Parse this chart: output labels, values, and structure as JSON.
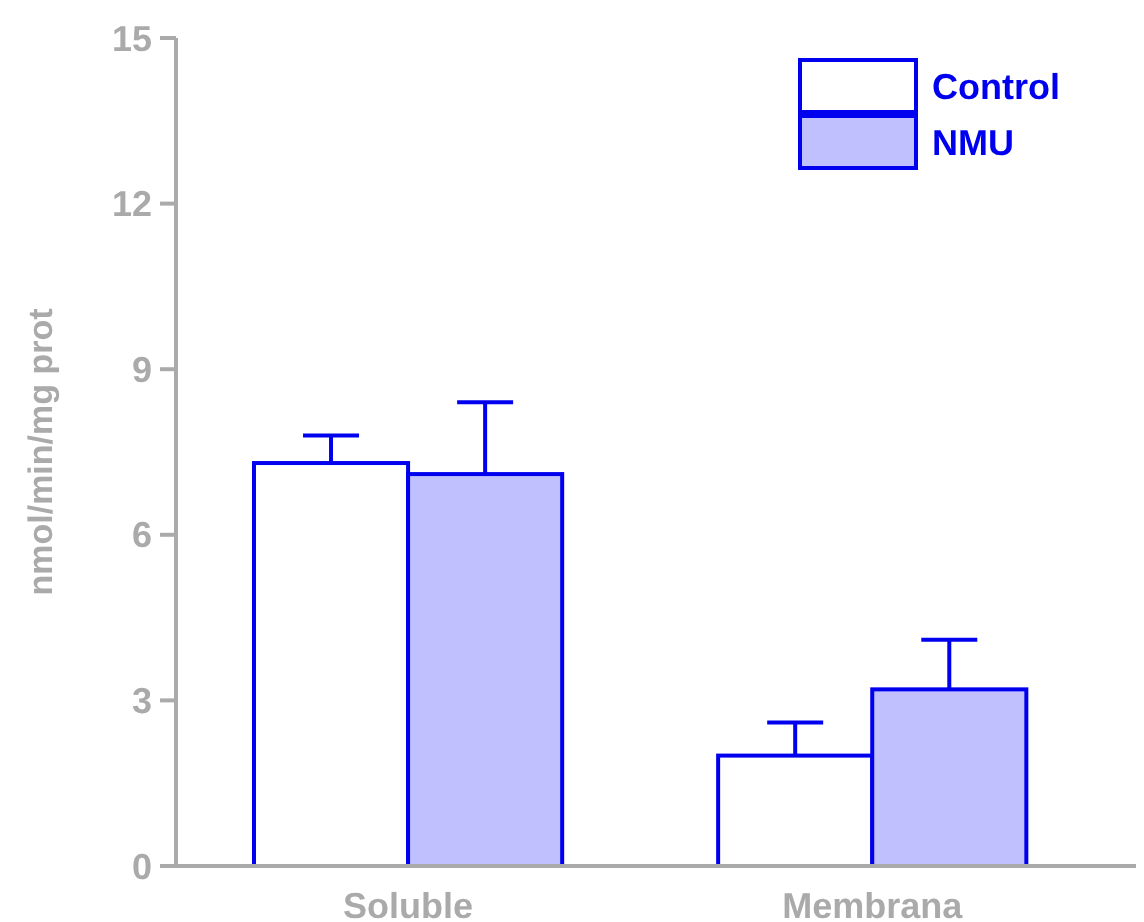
{
  "chart_data": {
    "type": "bar",
    "ylabel": "nmol/min/mg prot",
    "categories": [
      "Soluble",
      "Membrana"
    ],
    "series": [
      {
        "name": "Control",
        "color": "#ffffff",
        "values": [
          7.3,
          2.0
        ],
        "errors": [
          [
            7.3,
            7.8
          ],
          [
            2.0,
            2.6
          ]
        ]
      },
      {
        "name": "NMU",
        "color": "#c0c0ff",
        "values": [
          7.1,
          3.2
        ],
        "errors": [
          [
            7.1,
            8.4
          ],
          [
            3.2,
            4.1
          ]
        ]
      }
    ],
    "ylim": [
      0,
      15
    ],
    "yticks": [
      0,
      3,
      6,
      9,
      12,
      15
    ],
    "legend": "top right",
    "grid": false
  }
}
